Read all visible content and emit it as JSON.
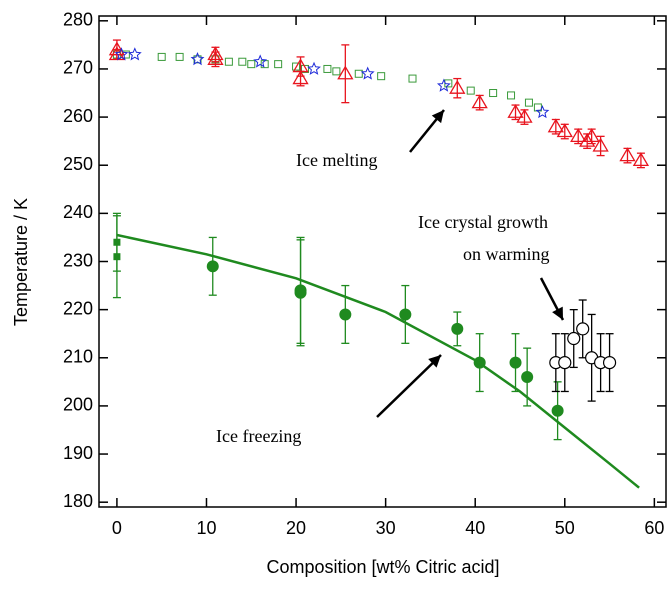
{
  "chart_data": {
    "type": "scatter",
    "xlabel": "Composition [wt% Citric acid]",
    "ylabel": "Temperature / K",
    "xlim": [
      -2,
      61.3
    ],
    "ylim": [
      179,
      281
    ],
    "xticks": [
      0,
      10,
      20,
      30,
      40,
      50,
      60
    ],
    "yticks": [
      180,
      190,
      200,
      210,
      220,
      230,
      240,
      250,
      260,
      270,
      280
    ],
    "annotations": [
      {
        "text": "Ice melting"
      },
      {
        "text": "Ice freezing"
      },
      {
        "text": [
          "Ice crystal growth",
          "on warming"
        ]
      }
    ],
    "series": [
      {
        "marker": "square-open",
        "color": "#3a9a3a",
        "x": [
          0,
          1,
          5,
          7,
          9,
          11,
          12.5,
          14,
          15,
          16.5,
          18,
          20,
          21,
          23.5,
          24.5,
          27,
          29.5,
          33,
          37,
          39.5,
          42,
          44,
          46,
          47
        ],
        "values": [
          273,
          273,
          272.5,
          272.5,
          272,
          272,
          271.5,
          271.5,
          271,
          271,
          271,
          270.5,
          270,
          270,
          269.5,
          269,
          268.5,
          268,
          267,
          265.5,
          265,
          264.5,
          263,
          262
        ]
      },
      {
        "marker": "triangle-open",
        "color": "#e8141e",
        "x": [
          0,
          0,
          11,
          11,
          20.5,
          20.5,
          25.5,
          38,
          40.5,
          44.5,
          45.5,
          49,
          50,
          51.5,
          52.5,
          53,
          54,
          57,
          58.5
        ],
        "values": [
          274,
          273,
          272,
          273,
          268,
          270.5,
          269,
          266,
          263,
          261,
          260,
          258,
          257,
          256,
          255,
          256,
          254,
          252,
          251
        ],
        "errors": [
          2,
          1,
          1.5,
          1.5,
          1.5,
          2,
          6,
          2,
          1.5,
          1.5,
          1.5,
          1.5,
          1.5,
          1.5,
          1.5,
          1.5,
          2,
          1.5,
          1.5
        ]
      },
      {
        "marker": "star-open",
        "color": "#1e2ad8",
        "x": [
          0.5,
          2,
          9,
          16,
          22,
          28,
          36.5,
          47.5
        ],
        "values": [
          273,
          273,
          272,
          271.5,
          270,
          269,
          266.5,
          261
        ]
      },
      {
        "marker": "square-filled",
        "color": "#1f8a1f",
        "x": [
          0,
          0
        ],
        "values": [
          234,
          231
        ],
        "errors": [
          6,
          8.5
        ]
      },
      {
        "marker": "circle-filled",
        "color": "#1f8a1f",
        "x": [
          10.7,
          20.5,
          20.5,
          25.5,
          32.2,
          38,
          40.5,
          44.5,
          45.8,
          49.2
        ],
        "values": [
          229,
          223.5,
          224,
          219,
          219,
          216,
          209,
          209,
          206,
          199
        ],
        "errors": [
          6,
          11,
          11,
          6,
          6,
          3.5,
          6,
          6,
          6,
          6
        ]
      },
      {
        "marker": "circle-open",
        "color": "#000000",
        "x": [
          49,
          50,
          51,
          52,
          53,
          54,
          55
        ],
        "values": [
          209,
          209,
          214,
          216,
          210,
          209,
          209
        ],
        "errors": [
          6,
          6,
          6,
          6,
          9,
          6,
          6
        ]
      },
      {
        "marker": "line",
        "color": "#1f8a1f",
        "x": [
          0,
          10,
          20,
          30,
          40,
          45,
          50,
          55,
          58.3
        ],
        "values": [
          235.5,
          231.5,
          226.5,
          219.5,
          209.5,
          203,
          195.5,
          188,
          183
        ]
      }
    ]
  }
}
